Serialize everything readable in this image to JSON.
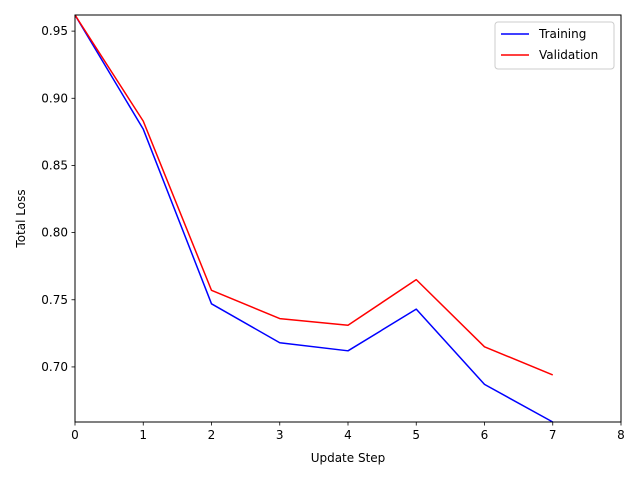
{
  "chart_data": {
    "type": "line",
    "title": "",
    "xlabel": "Update Step",
    "ylabel": "Total Loss",
    "xlim": [
      0,
      8
    ],
    "ylim": [
      0.659,
      0.962
    ],
    "xticks": [
      0,
      1,
      2,
      3,
      4,
      5,
      6,
      7,
      8
    ],
    "xtick_labels": [
      "0",
      "1",
      "2",
      "3",
      "4",
      "5",
      "6",
      "7",
      "8"
    ],
    "yticks": [
      0.7,
      0.75,
      0.8,
      0.85,
      0.9,
      0.95
    ],
    "ytick_labels": [
      "0.70",
      "0.75",
      "0.80",
      "0.85",
      "0.90",
      "0.95"
    ],
    "grid": false,
    "legend_position": "upper-right",
    "x": [
      0,
      1,
      2,
      3,
      4,
      5,
      6,
      7
    ],
    "series": [
      {
        "name": "Training",
        "color": "#0000ff",
        "values": [
          0.962,
          0.877,
          0.747,
          0.718,
          0.712,
          0.743,
          0.687,
          0.659
        ]
      },
      {
        "name": "Validation",
        "color": "#ff0000",
        "values": [
          0.962,
          0.883,
          0.757,
          0.736,
          0.731,
          0.765,
          0.715,
          0.694
        ]
      }
    ]
  }
}
